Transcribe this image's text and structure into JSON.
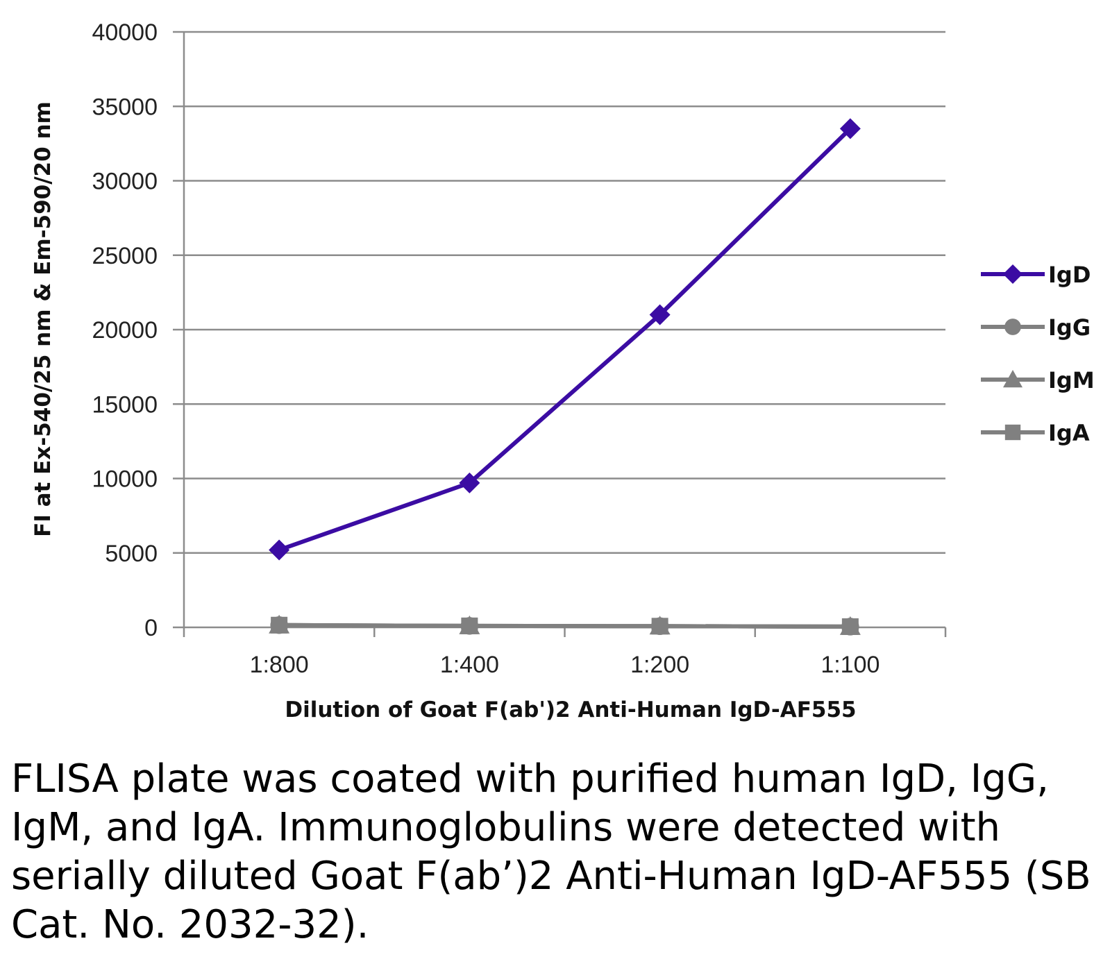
{
  "chart_data": {
    "type": "line",
    "categories": [
      "1:800",
      "1:400",
      "1:200",
      "1:100"
    ],
    "series": [
      {
        "name": "IgD",
        "values": [
          5200,
          9700,
          21000,
          33500
        ],
        "color": "#3b0ca3",
        "marker": "diamond"
      },
      {
        "name": "IgG",
        "values": [
          150,
          100,
          80,
          50
        ],
        "color": "#808080",
        "marker": "circle"
      },
      {
        "name": "IgM",
        "values": [
          150,
          100,
          80,
          50
        ],
        "color": "#808080",
        "marker": "triangle"
      },
      {
        "name": "IgA",
        "values": [
          150,
          100,
          80,
          50
        ],
        "color": "#808080",
        "marker": "square"
      }
    ],
    "title": "",
    "xlabel": "Dilution of Goat F(ab')2 Anti-Human IgD-AF555",
    "ylabel": "FI at Ex-540/25 nm & Em-590/20 nm",
    "ylim": [
      0,
      40000
    ],
    "yticks": [
      "0",
      "5000",
      "10000",
      "15000",
      "20000",
      "25000",
      "30000",
      "35000",
      "40000"
    ],
    "grid": true,
    "legend": "right"
  },
  "caption": "FLISA plate was coated with purified human IgD, IgG, IgM, and IgA.  Immunoglobulins were detected with serially diluted Goat F(ab’)2 Anti-Human IgD-AF555 (SB Cat. No. 2032-32)."
}
